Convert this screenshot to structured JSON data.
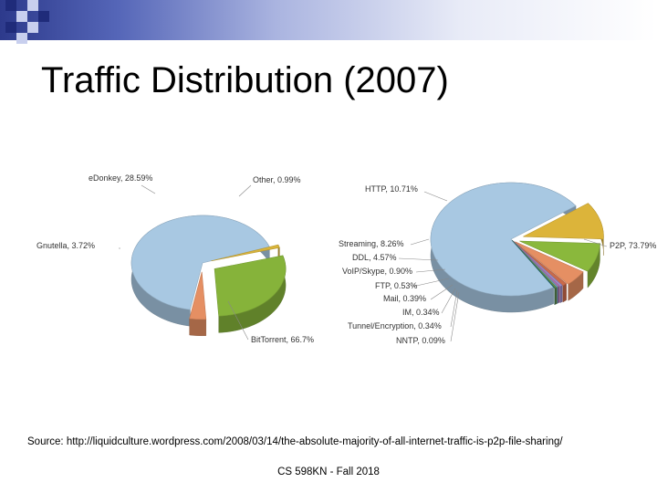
{
  "slide": {
    "title": "Traffic Distribution (2007)",
    "source": "Source: http://liquidculture.wordpress.com/2008/03/14/the-absolute-majority-of-all-internet-traffic-is-p2p-file-sharing/",
    "footer": "CS 598KN - Fall 2018"
  },
  "colors": {
    "header_band_dark": "#2d3a8c",
    "checker_dark": "#1f2b7a",
    "checker_light": "#c8cfee"
  },
  "chart_data": [
    {
      "type": "pie",
      "style": "3d",
      "series": [
        {
          "label": "BitTorrent, 66.7%",
          "value": 66.7,
          "color": "#a8c8e2"
        },
        {
          "label": "Other, 0.99%",
          "value": 0.99,
          "color": "#d9b43a"
        },
        {
          "label": "eDonkey, 28.59%",
          "value": 28.59,
          "color": "#86b33a"
        },
        {
          "label": "Gnutella, 3.72%",
          "value": 3.72,
          "color": "#e58f63"
        }
      ]
    },
    {
      "type": "pie",
      "style": "3d",
      "series": [
        {
          "label": "P2P, 73.79%",
          "value": 73.79,
          "color": "#a8c8e2"
        },
        {
          "label": "HTTP, 10.71%",
          "value": 10.71,
          "color": "#dcb43a"
        },
        {
          "label": "Streaming, 8.26%",
          "value": 8.26,
          "color": "#8ab83c"
        },
        {
          "label": "DDL, 4.57%",
          "value": 4.57,
          "color": "#e58f63"
        },
        {
          "label": "VoIP/Skype, 0.90%",
          "value": 0.9,
          "color": "#c96a4a"
        },
        {
          "label": "FTP, 0.53%",
          "value": 0.53,
          "color": "#9a8cc8"
        },
        {
          "label": "Mail, 0.39%",
          "value": 0.39,
          "color": "#b46fb0"
        },
        {
          "label": "IM, 0.34%",
          "value": 0.34,
          "color": "#6a9fb5"
        },
        {
          "label": "Tunnel/Encryption, 0.34%",
          "value": 0.34,
          "color": "#6b8f3e"
        },
        {
          "label": "NNTP, 0.09%",
          "value": 0.09,
          "color": "#1f6e7a"
        }
      ]
    }
  ]
}
